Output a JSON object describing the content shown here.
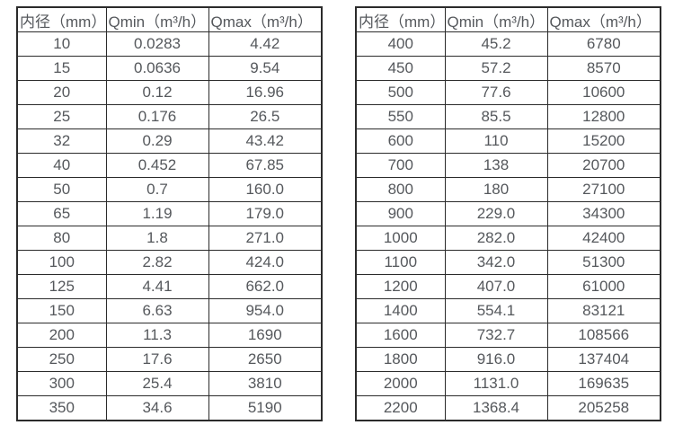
{
  "page": {
    "background": "#ffffff",
    "border_color": "#2b2b2b",
    "text_color": "#55585c"
  },
  "tables": [
    {
      "id": "diameter-flow-table-small",
      "headers": [
        "内径（mm）",
        "Qmin（m³/h）",
        "Qmax（m³/h）"
      ],
      "rows": [
        [
          "10",
          "0.0283",
          "4.42"
        ],
        [
          "15",
          "0.0636",
          "9.54"
        ],
        [
          "20",
          "0.12",
          "16.96"
        ],
        [
          "25",
          "0.176",
          "26.5"
        ],
        [
          "32",
          "0.29",
          "43.42"
        ],
        [
          "40",
          "0.452",
          "67.85"
        ],
        [
          "50",
          "0.7",
          "160.0"
        ],
        [
          "65",
          "1.19",
          "179.0"
        ],
        [
          "80",
          "1.8",
          "271.0"
        ],
        [
          "100",
          "2.82",
          "424.0"
        ],
        [
          "125",
          "4.41",
          "662.0"
        ],
        [
          "150",
          "6.63",
          "954.0"
        ],
        [
          "200",
          "11.3",
          "1690"
        ],
        [
          "250",
          "17.6",
          "2650"
        ],
        [
          "300",
          "25.4",
          "3810"
        ],
        [
          "350",
          "34.6",
          "5190"
        ]
      ]
    },
    {
      "id": "diameter-flow-table-large",
      "headers": [
        "内径（mm）",
        "Qmin（m³/h）",
        "Qmax（m³/h）"
      ],
      "rows": [
        [
          "400",
          "45.2",
          "6780"
        ],
        [
          "450",
          "57.2",
          "8570"
        ],
        [
          "500",
          "77.6",
          "10600"
        ],
        [
          "550",
          "85.5",
          "12800"
        ],
        [
          "600",
          "110",
          "15200"
        ],
        [
          "700",
          "138",
          "20700"
        ],
        [
          "800",
          "180",
          "27100"
        ],
        [
          "900",
          "229.0",
          "34300"
        ],
        [
          "1000",
          "282.0",
          "42400"
        ],
        [
          "1100",
          "342.0",
          "51300"
        ],
        [
          "1200",
          "407.0",
          "61000"
        ],
        [
          "1400",
          "554.1",
          "83121"
        ],
        [
          "1600",
          "732.7",
          "108566"
        ],
        [
          "1800",
          "916.0",
          "137404"
        ],
        [
          "2000",
          "1131.0",
          "169635"
        ],
        [
          "2200",
          "1368.4",
          "205258"
        ]
      ]
    }
  ]
}
